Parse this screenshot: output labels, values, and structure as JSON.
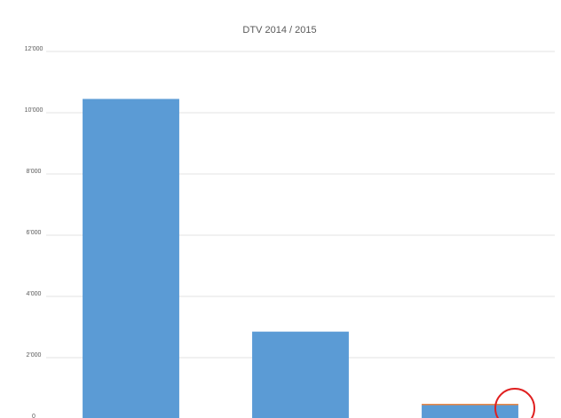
{
  "chart_data": {
    "type": "bar",
    "title": "DTV 2014 / 2015",
    "categories": [
      null,
      null,
      null
    ],
    "series": [
      {
        "color": "#5b9bd5",
        "values": [
          10450,
          2850,
          450
        ]
      },
      {
        "color": "#ed7d31",
        "values": [
          0,
          0,
          40
        ]
      }
    ],
    "stacked": true,
    "ylim": [
      0,
      12000
    ],
    "yticks": [
      0,
      {
        "value": 2000,
        "label": "2'000"
      },
      {
        "value": 4000,
        "label": "4'000"
      },
      {
        "value": 6000,
        "label": "6'000"
      },
      {
        "value": 8000,
        "label": "8'000"
      },
      {
        "value": 10000,
        "label": "10'000"
      },
      {
        "value": 12000,
        "label": "12'000"
      }
    ],
    "grid": true
  }
}
